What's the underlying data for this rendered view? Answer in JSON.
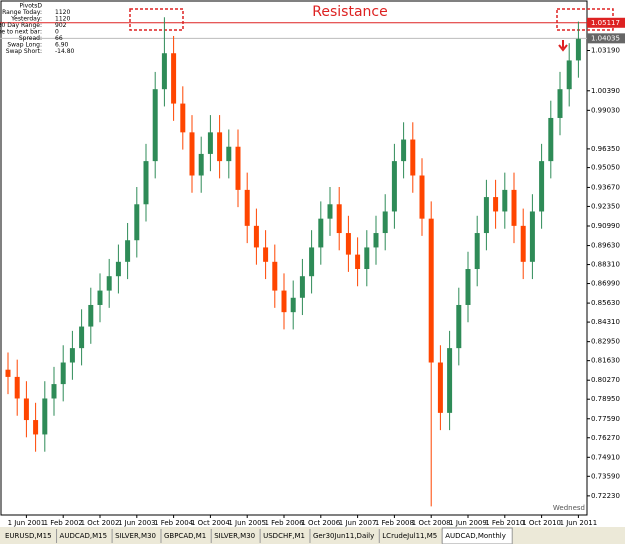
{
  "chart_data": {
    "type": "candlestick",
    "title": "Resistance",
    "instrument_tab": "AUDCAD,Monthly",
    "tabs": [
      "EURUSD,M15",
      "AUDCAD,M15",
      "SILVER,M30",
      "GBPCAD,M1",
      "SILVER,M30",
      "USDCHF,M1",
      "Ger30Jun11,Daily",
      "LCrudeJul11,M5"
    ],
    "info_panel": [
      [
        "PivotsD",
        ""
      ],
      [
        "Range Today:",
        "1120"
      ],
      [
        "Yesterday:",
        "1120"
      ],
      [
        "30 Day Range:",
        "902"
      ],
      [
        "Time to next bar:",
        "0"
      ],
      [
        "Spread:",
        "66"
      ],
      [
        "Swap Long:",
        "6.90"
      ],
      [
        "Swap Short:",
        "-14.80"
      ]
    ],
    "day_label": "Wednesd",
    "up_color": "#2e8b57",
    "down_color": "#ff4500",
    "resistance": {
      "value": 1.05117,
      "label": "1.05117"
    },
    "last_price": {
      "value": 1.04035,
      "label": "1.04035"
    },
    "ylim": [
      0.709,
      1.067
    ],
    "yticks": [
      {
        "value": 1.0319,
        "label": "1.03190"
      },
      {
        "value": 1.0039,
        "label": "1.00390"
      },
      {
        "value": 0.9903,
        "label": "0.99030"
      },
      {
        "value": 0.9635,
        "label": "0.96350"
      },
      {
        "value": 0.9505,
        "label": "0.95050"
      },
      {
        "value": 0.9367,
        "label": "0.93670"
      },
      {
        "value": 0.9235,
        "label": "0.92350"
      },
      {
        "value": 0.9099,
        "label": "0.90990"
      },
      {
        "value": 0.8963,
        "label": "0.89630"
      },
      {
        "value": 0.8831,
        "label": "0.88310"
      },
      {
        "value": 0.8699,
        "label": "0.86990"
      },
      {
        "value": 0.8563,
        "label": "0.85630"
      },
      {
        "value": 0.8431,
        "label": "0.84310"
      },
      {
        "value": 0.8295,
        "label": "0.82950"
      },
      {
        "value": 0.8163,
        "label": "0.81630"
      },
      {
        "value": 0.8027,
        "label": "0.80270"
      },
      {
        "value": 0.7895,
        "label": "0.78950"
      },
      {
        "value": 0.7759,
        "label": "0.77590"
      },
      {
        "value": 0.7627,
        "label": "0.76270"
      },
      {
        "value": 0.7491,
        "label": "0.74910"
      },
      {
        "value": 0.7359,
        "label": "0.73590"
      },
      {
        "value": 0.7223,
        "label": "0.72230"
      }
    ],
    "categories": [
      null,
      null,
      "1 Jun 2001",
      null,
      null,
      null,
      "1 Feb 2002",
      null,
      null,
      null,
      "1 Oct 2002",
      null,
      null,
      null,
      "1 Jun 2003",
      null,
      null,
      null,
      "1 Feb 2004",
      null,
      null,
      null,
      "1 Oct 2004",
      null,
      null,
      null,
      "1 Jun 2005",
      null,
      null,
      null,
      "1 Feb 2006",
      null,
      null,
      null,
      "1 Oct 2006",
      null,
      null,
      null,
      "1 Jun 2007",
      null,
      null,
      null,
      "1 Feb 2008",
      null,
      null,
      null,
      "1 Oct 2008",
      null,
      null,
      null,
      "1 Jun 2009",
      null,
      null,
      null,
      "1 Feb 2010",
      null,
      null,
      null,
      "1 Oct 2010",
      null,
      null,
      null,
      "1 Jun 2011"
    ],
    "open": [
      0.81,
      0.805,
      0.79,
      0.775,
      0.765,
      0.79,
      0.8,
      0.815,
      0.825,
      0.84,
      0.855,
      0.865,
      0.875,
      0.885,
      0.9,
      0.925,
      0.955,
      1.005,
      1.03,
      0.995,
      0.975,
      0.945,
      0.96,
      0.975,
      0.955,
      0.965,
      0.935,
      0.91,
      0.895,
      0.885,
      0.865,
      0.85,
      0.86,
      0.875,
      0.895,
      0.915,
      0.925,
      0.905,
      0.89,
      0.88,
      0.895,
      0.905,
      0.92,
      0.955,
      0.97,
      0.945,
      0.915,
      0.815,
      0.78,
      0.825,
      0.855,
      0.88,
      0.905,
      0.93,
      0.92,
      0.935,
      0.91,
      0.885,
      0.92,
      0.955,
      0.985,
      1.005,
      1.025
    ],
    "high": [
      0.822,
      0.817,
      0.802,
      0.787,
      0.802,
      0.812,
      0.827,
      0.837,
      0.852,
      0.867,
      0.877,
      0.887,
      0.897,
      0.912,
      0.937,
      0.967,
      1.017,
      1.055,
      1.042,
      1.007,
      0.987,
      0.972,
      0.987,
      0.987,
      0.977,
      0.977,
      0.947,
      0.922,
      0.907,
      0.897,
      0.877,
      0.872,
      0.887,
      0.907,
      0.927,
      0.937,
      0.937,
      0.917,
      0.902,
      0.907,
      0.917,
      0.932,
      0.967,
      0.982,
      0.982,
      0.957,
      0.927,
      0.827,
      0.837,
      0.867,
      0.892,
      0.917,
      0.942,
      0.942,
      0.947,
      0.947,
      0.922,
      0.932,
      0.967,
      0.997,
      1.017,
      1.037,
      1.052
    ],
    "low": [
      0.793,
      0.778,
      0.763,
      0.753,
      0.753,
      0.778,
      0.788,
      0.803,
      0.813,
      0.828,
      0.843,
      0.853,
      0.863,
      0.873,
      0.888,
      0.913,
      0.943,
      0.993,
      0.983,
      0.963,
      0.933,
      0.933,
      0.948,
      0.943,
      0.943,
      0.923,
      0.898,
      0.883,
      0.873,
      0.853,
      0.838,
      0.838,
      0.848,
      0.863,
      0.883,
      0.903,
      0.893,
      0.878,
      0.868,
      0.868,
      0.883,
      0.893,
      0.908,
      0.943,
      0.933,
      0.903,
      0.715,
      0.768,
      0.768,
      0.813,
      0.843,
      0.868,
      0.893,
      0.908,
      0.908,
      0.898,
      0.873,
      0.873,
      0.908,
      0.943,
      0.973,
      0.993,
      1.013
    ],
    "close": [
      0.805,
      0.79,
      0.775,
      0.765,
      0.79,
      0.8,
      0.815,
      0.825,
      0.84,
      0.855,
      0.865,
      0.875,
      0.885,
      0.9,
      0.925,
      0.955,
      1.005,
      1.03,
      0.995,
      0.975,
      0.945,
      0.96,
      0.975,
      0.955,
      0.965,
      0.935,
      0.91,
      0.895,
      0.885,
      0.865,
      0.85,
      0.86,
      0.875,
      0.895,
      0.915,
      0.925,
      0.905,
      0.89,
      0.88,
      0.895,
      0.905,
      0.92,
      0.955,
      0.97,
      0.945,
      0.915,
      0.815,
      0.78,
      0.825,
      0.855,
      0.88,
      0.905,
      0.93,
      0.92,
      0.935,
      0.91,
      0.885,
      0.92,
      0.955,
      0.985,
      1.005,
      1.025,
      1.04
    ]
  }
}
